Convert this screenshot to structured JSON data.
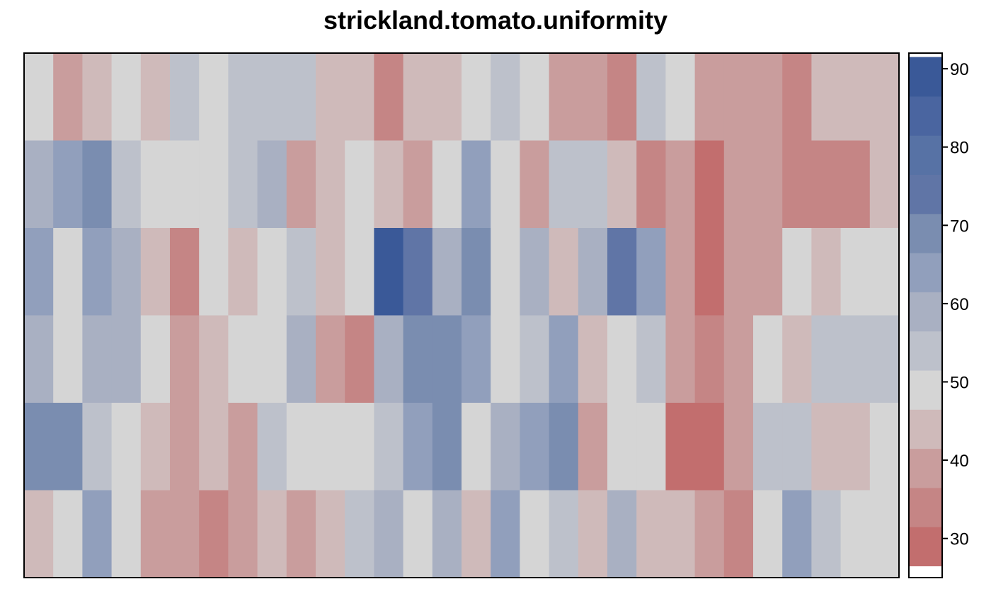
{
  "chart_data": {
    "type": "heatmap",
    "title": "strickland.tomato.uniformity",
    "xlabel": "",
    "ylabel": "",
    "rows": 6,
    "cols": 30,
    "values": [
      [
        50,
        40,
        45,
        50,
        45,
        55,
        50,
        55,
        55,
        55,
        45,
        45,
        35,
        45,
        45,
        50,
        55,
        50,
        40,
        40,
        35,
        55,
        50,
        40,
        40,
        40,
        35,
        45,
        45,
        45
      ],
      [
        60,
        65,
        70,
        55,
        50,
        50,
        50,
        55,
        60,
        40,
        45,
        50,
        45,
        40,
        50,
        65,
        50,
        40,
        55,
        55,
        45,
        35,
        40,
        30,
        40,
        40,
        35,
        35,
        35,
        45
      ],
      [
        65,
        50,
        65,
        60,
        45,
        35,
        50,
        45,
        50,
        55,
        45,
        50,
        90,
        75,
        60,
        70,
        50,
        60,
        45,
        60,
        75,
        65,
        40,
        30,
        40,
        40,
        50,
        45,
        50,
        50
      ],
      [
        60,
        50,
        60,
        60,
        50,
        40,
        45,
        50,
        50,
        60,
        40,
        35,
        60,
        70,
        70,
        65,
        50,
        55,
        65,
        45,
        50,
        55,
        40,
        35,
        40,
        50,
        45,
        55,
        55,
        55
      ],
      [
        70,
        70,
        55,
        50,
        45,
        40,
        45,
        40,
        55,
        50,
        50,
        50,
        55,
        65,
        70,
        50,
        60,
        65,
        70,
        40,
        50,
        50,
        30,
        30,
        40,
        55,
        55,
        45,
        45,
        50
      ],
      [
        45,
        50,
        65,
        50,
        40,
        40,
        35,
        40,
        45,
        40,
        45,
        55,
        60,
        50,
        60,
        45,
        65,
        50,
        55,
        45,
        60,
        45,
        45,
        40,
        35,
        50,
        65,
        55,
        50,
        50
      ]
    ],
    "color_scale": {
      "min": 25,
      "max": 92,
      "breaks": [
        26.5,
        31.5,
        36.5,
        41.5,
        46.5,
        51.5,
        56.5,
        61.5,
        66.5,
        71.5,
        76.5,
        81.5,
        86.5,
        91.5
      ],
      "colors": [
        "#c26e6e",
        "#c58585",
        "#c99d9d",
        "#cfbaba",
        "#d5d5d5",
        "#bdc1cb",
        "#a9b0c2",
        "#919fbc",
        "#7a8db0",
        "#6075a6",
        "#5772a5",
        "#4a65a0",
        "#3a5998"
      ],
      "tick_values": [
        30,
        40,
        50,
        60,
        70,
        80,
        90
      ],
      "tick_labels": [
        "30",
        "40",
        "50",
        "60",
        "70",
        "80",
        "90"
      ]
    },
    "grid": false,
    "legend": "right"
  }
}
